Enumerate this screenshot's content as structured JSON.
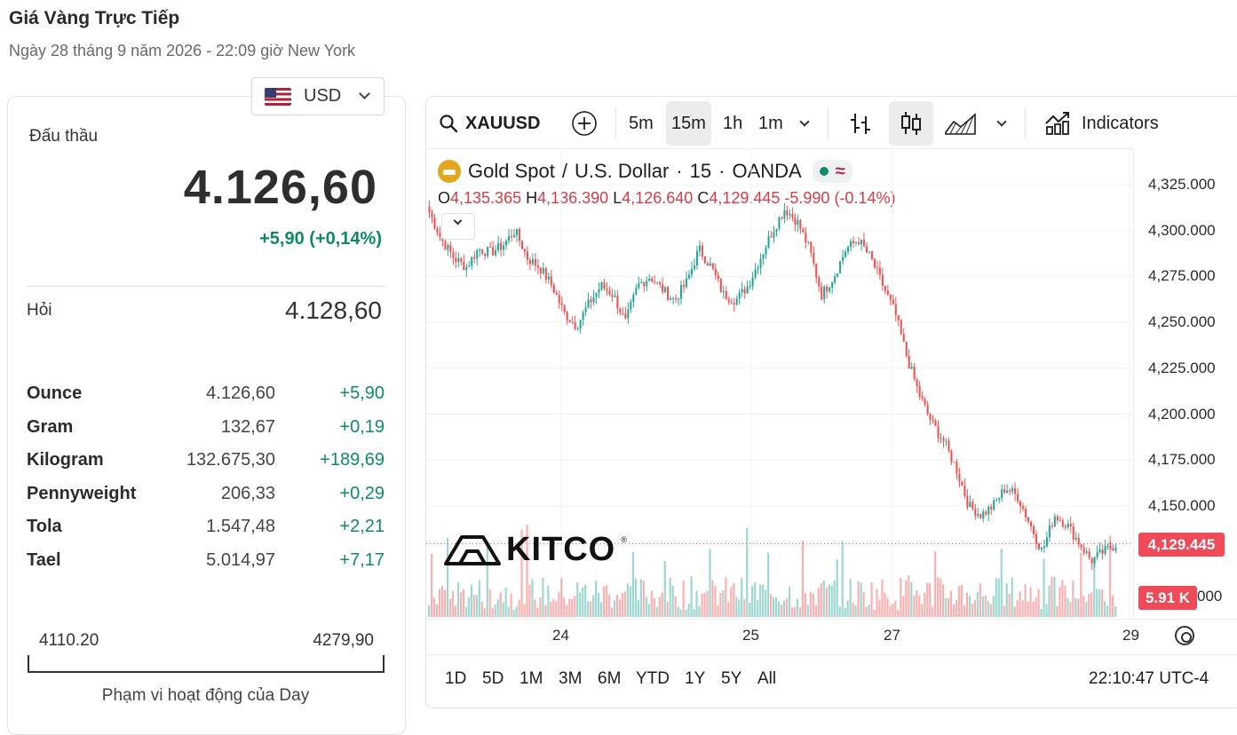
{
  "page": {
    "title": "Giá Vàng Trực Tiếp",
    "subtitle": "Ngày 28 tháng 9 năm 2026 - 22:09 giờ New York"
  },
  "currency": {
    "selected": "USD",
    "flag_icon": "us-flag-icon"
  },
  "quote": {
    "bid_label": "Đấu thầu",
    "bid_value": "4.126,60",
    "bid_change": "+5,90 (+0,14%)",
    "ask_label": "Hỏi",
    "ask_value": "4.128,60",
    "change_color": "#0e8a6a"
  },
  "units": [
    {
      "name": "Ounce",
      "price": "4.126,60",
      "change": "+5,90"
    },
    {
      "name": "Gram",
      "price": "132,67",
      "change": "+0,19"
    },
    {
      "name": "Kilogram",
      "price": "132.675,30",
      "change": "+189,69"
    },
    {
      "name": "Pennyweight",
      "price": "206,33",
      "change": "+0,29"
    },
    {
      "name": "Tola",
      "price": "1.547,48",
      "change": "+2,21"
    },
    {
      "name": "Tael",
      "price": "5.014,97",
      "change": "+7,17"
    }
  ],
  "day_range": {
    "low": "4110.20",
    "high": "4279,90",
    "caption": "Phạm vi hoạt động của Day"
  },
  "toolbar": {
    "symbol": "XAUUSD",
    "intervals": [
      "5m",
      "15m",
      "1h",
      "1m"
    ],
    "selected_interval": "15m",
    "indicators_label": "Indicators"
  },
  "chart_header": {
    "instrument": "Gold Spot",
    "quote_currency": "U.S. Dollar",
    "interval": "15",
    "source": "OANDA",
    "o_label": "O",
    "o_value": "4,135.365",
    "h_label": "H",
    "h_value": "4,136.390",
    "l_label": "L",
    "l_value": "4,126.640",
    "c_label": "C",
    "c_value": "4,129.445",
    "change": "-5.990 (-0.14%)"
  },
  "chart_data": {
    "type": "candlestick",
    "symbol": "XAUUSD",
    "interval": "15m",
    "y_ticks": [
      "4,325.000",
      "4,300.000",
      "4,275.000",
      "4,250.000",
      "4,225.000",
      "4,200.000",
      "4,175.000",
      "4,150.000"
    ],
    "ylim": [
      4110,
      4335
    ],
    "x_ticks": [
      "24",
      "25",
      "27",
      "29"
    ],
    "approx_close_path": [
      4310,
      4295,
      4285,
      4280,
      4290,
      4288,
      4292,
      4300,
      4285,
      4280,
      4270,
      4255,
      4248,
      4260,
      4270,
      4265,
      4250,
      4270,
      4275,
      4268,
      4262,
      4272,
      4290,
      4280,
      4265,
      4262,
      4270,
      4285,
      4300,
      4312,
      4305,
      4290,
      4265,
      4275,
      4290,
      4295,
      4285,
      4270,
      4255,
      4230,
      4210,
      4195,
      4185,
      4170,
      4150,
      4145,
      4150,
      4160,
      4155,
      4140,
      4125,
      4145,
      4140,
      4130,
      4120,
      4125,
      4129
    ],
    "last_price": "4,129.445",
    "volume_label": "5.91 K",
    "up_color": "#26a69a",
    "down_color": "#ef5350"
  },
  "ranges": [
    "1D",
    "5D",
    "1M",
    "3M",
    "6M",
    "YTD",
    "1Y",
    "5Y",
    "All"
  ],
  "clock": "22:10:47 UTC-4",
  "watermark": "KITCO"
}
